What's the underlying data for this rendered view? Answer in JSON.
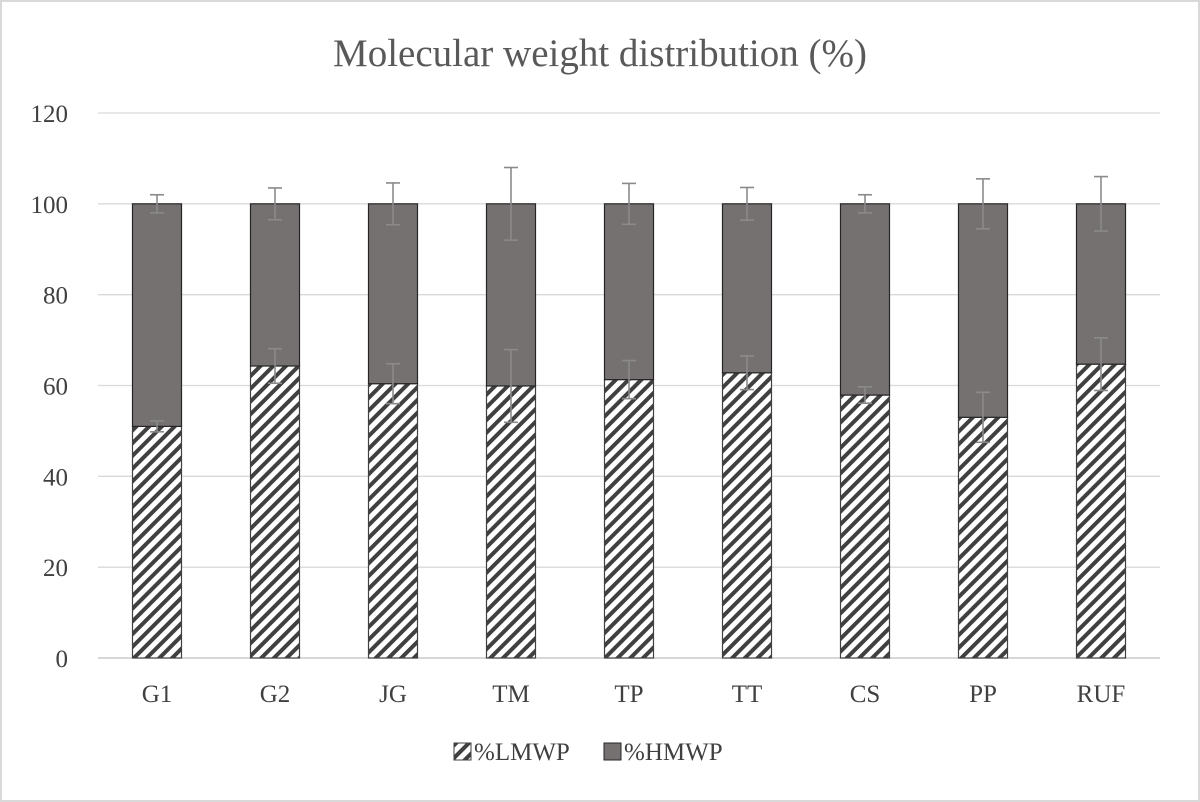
{
  "chart_data": {
    "type": "bar",
    "stacked": true,
    "title": "Molecular weight distribution (%)",
    "xlabel": "",
    "ylabel": "",
    "categories": [
      "G1",
      "G2",
      "JG",
      "TM",
      "TP",
      "TT",
      "CS",
      "PP",
      "RUF"
    ],
    "ylim": [
      0,
      120
    ],
    "yticks": [
      0,
      20,
      40,
      60,
      80,
      100,
      120
    ],
    "grid": true,
    "legend_position": "bottom",
    "series": [
      {
        "name": "%LMWP",
        "pattern": "diagonal-hatch",
        "values": [
          51,
          64.3,
          60.4,
          59.9,
          61.3,
          62.8,
          57.9,
          53,
          64.7
        ],
        "error": [
          1.2,
          3.8,
          4.4,
          8,
          4.2,
          3.7,
          1.8,
          5.5,
          5.8
        ]
      },
      {
        "name": "%HMWP",
        "color": "#767171",
        "values": [
          49,
          35.7,
          39.6,
          40.1,
          38.7,
          37.2,
          42.1,
          47,
          35.3
        ],
        "error": [
          2,
          3.5,
          4.6,
          8,
          4.5,
          3.6,
          2,
          5.5,
          6
        ]
      }
    ]
  }
}
